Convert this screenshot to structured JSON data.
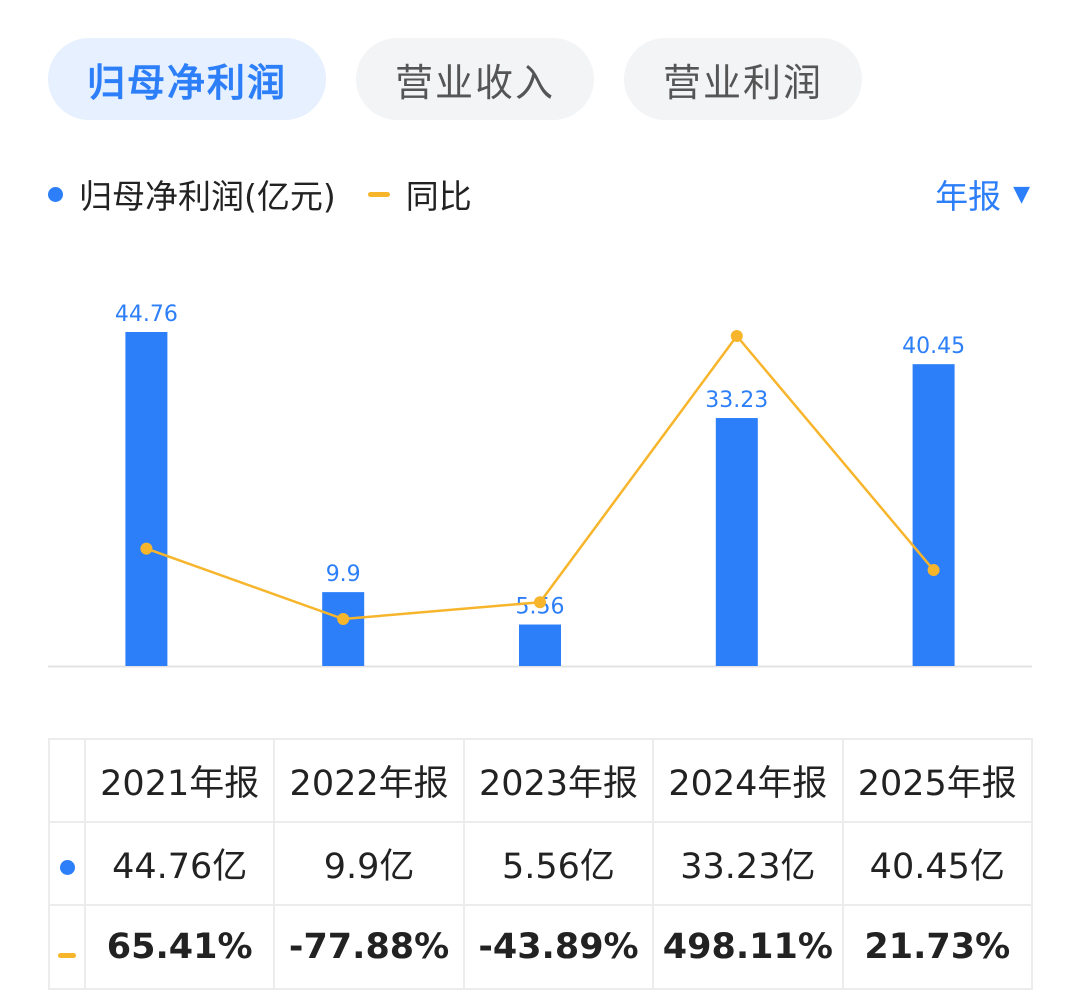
{
  "tabs": [
    {
      "label": "归母净利润",
      "active": true
    },
    {
      "label": "营业收入",
      "active": false
    },
    {
      "label": "营业利润",
      "active": false
    }
  ],
  "legend": {
    "bar_label": "归母净利润(亿元)",
    "line_label": "同比"
  },
  "period_selector": {
    "label": "年报"
  },
  "colors": {
    "bar": "#2d7ff9",
    "line": "#f7b52c",
    "positive": "#e04e4e",
    "negative": "#2fa36b"
  },
  "chart_data": {
    "type": "bar",
    "categories": [
      "2021年报",
      "2022年报",
      "2023年报",
      "2024年报",
      "2025年报"
    ],
    "series": [
      {
        "name": "归母净利润(亿元)",
        "type": "bar",
        "values": [
          44.76,
          9.9,
          5.56,
          33.23,
          40.45
        ]
      },
      {
        "name": "同比",
        "type": "line",
        "values": [
          65.41,
          -77.88,
          -43.89,
          498.11,
          21.73
        ]
      }
    ],
    "bar_labels": [
      "44.76",
      "9.9",
      "5.56",
      "33.23",
      "40.45"
    ],
    "grid": false
  },
  "table": {
    "headers": [
      "2021年报",
      "2022年报",
      "2023年报",
      "2024年报",
      "2025年报"
    ],
    "values": [
      "44.76亿",
      "9.9亿",
      "5.56亿",
      "33.23亿",
      "40.45亿"
    ],
    "yoy": [
      "65.41%",
      "-77.88%",
      "-43.89%",
      "498.11%",
      "21.73%"
    ]
  }
}
